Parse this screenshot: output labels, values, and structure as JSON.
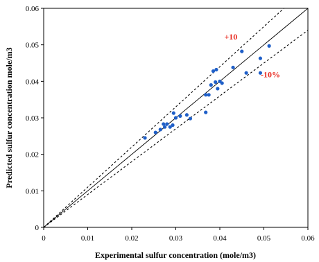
{
  "chart_data": {
    "type": "scatter",
    "xlabel": "Experimental sulfur concentration  (mole/m3)",
    "ylabel": "Predicted sulfur concentration mole/m3",
    "xlim": [
      0,
      0.06
    ],
    "ylim": [
      0,
      0.06
    ],
    "xticks": [
      "0",
      "0.01",
      "0.02",
      "0.03",
      "0.04",
      "0.05",
      "0.06"
    ],
    "yticks": [
      "0",
      "0.01",
      "0.02",
      "0.03",
      "0.04",
      "0.05",
      "0.06"
    ],
    "grid": false,
    "marker_color": "#1f5fc8",
    "annotation_color": "#e8281e",
    "lines": [
      {
        "kind": "identity",
        "slope": 1.0,
        "style": "solid"
      },
      {
        "kind": "bound",
        "slope": 1.1,
        "style": "dashed"
      },
      {
        "kind": "bound",
        "slope": 0.9,
        "style": "dashed"
      }
    ],
    "annotations": [
      {
        "text": "+10",
        "x": 0.0425,
        "y": 0.0515
      },
      {
        "text": "-10%",
        "x": 0.0515,
        "y": 0.0411
      }
    ],
    "points": [
      {
        "x": 0.023,
        "y": 0.0245
      },
      {
        "x": 0.0254,
        "y": 0.026
      },
      {
        "x": 0.0265,
        "y": 0.0268
      },
      {
        "x": 0.0272,
        "y": 0.0283
      },
      {
        "x": 0.0275,
        "y": 0.0275
      },
      {
        "x": 0.028,
        "y": 0.0283
      },
      {
        "x": 0.0287,
        "y": 0.0275
      },
      {
        "x": 0.0293,
        "y": 0.028
      },
      {
        "x": 0.0295,
        "y": 0.0313
      },
      {
        "x": 0.03,
        "y": 0.03
      },
      {
        "x": 0.031,
        "y": 0.0305
      },
      {
        "x": 0.0325,
        "y": 0.0308
      },
      {
        "x": 0.0333,
        "y": 0.0298
      },
      {
        "x": 0.0368,
        "y": 0.0315
      },
      {
        "x": 0.0368,
        "y": 0.0363
      },
      {
        "x": 0.0375,
        "y": 0.0363
      },
      {
        "x": 0.038,
        "y": 0.039
      },
      {
        "x": 0.0385,
        "y": 0.0428
      },
      {
        "x": 0.039,
        "y": 0.0398
      },
      {
        "x": 0.0392,
        "y": 0.0432
      },
      {
        "x": 0.0395,
        "y": 0.038
      },
      {
        "x": 0.04,
        "y": 0.04
      },
      {
        "x": 0.0405,
        "y": 0.0395
      },
      {
        "x": 0.043,
        "y": 0.0438
      },
      {
        "x": 0.045,
        "y": 0.0482
      },
      {
        "x": 0.046,
        "y": 0.0423
      },
      {
        "x": 0.0492,
        "y": 0.0463
      },
      {
        "x": 0.0492,
        "y": 0.0423
      },
      {
        "x": 0.0512,
        "y": 0.0497
      }
    ]
  }
}
